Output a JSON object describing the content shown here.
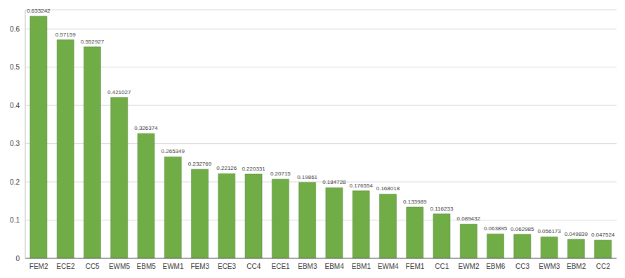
{
  "chart_data": {
    "type": "bar",
    "categories": [
      "FEM2",
      "ECE2",
      "CC5",
      "EWM5",
      "EBM5",
      "EWM1",
      "FEM3",
      "ECE3",
      "CC4",
      "ECE1",
      "EBM3",
      "EBM4",
      "EBM1",
      "EWM4",
      "FEM1",
      "CC1",
      "EWM2",
      "EBM6",
      "CC3",
      "EWM3",
      "EBM2",
      "CC2"
    ],
    "values": [
      0.633242,
      0.57159,
      0.552927,
      0.421027,
      0.326374,
      0.265349,
      0.232769,
      0.22126,
      0.220331,
      0.20715,
      0.19861,
      0.184728,
      0.176554,
      0.168018,
      0.133989,
      0.116233,
      0.089432,
      0.063895,
      0.062985,
      0.056173,
      0.049839,
      0.047524
    ],
    "color": "#70ad47",
    "ylim": [
      0,
      0.65
    ],
    "yticks": [
      0,
      0.1,
      0.2,
      0.3,
      0.4,
      0.5,
      0.6
    ],
    "grid": true,
    "data_labels": true
  }
}
